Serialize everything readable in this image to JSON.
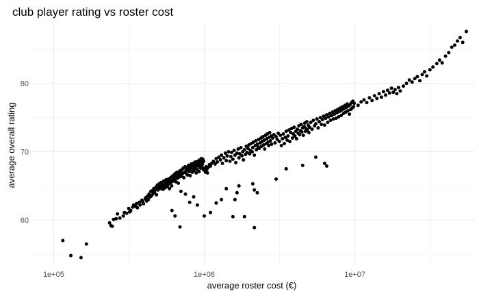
{
  "chart_data": {
    "type": "scatter",
    "title": "club player rating vs roster cost",
    "xlabel": "average roster cost (€)",
    "ylabel": "average overall rating",
    "x_scale": "log10",
    "xlim": [
      72000,
      62000000
    ],
    "ylim": [
      53.3,
      89.0
    ],
    "x_ticks": [
      {
        "value": 100000,
        "label": "1e+05"
      },
      {
        "value": 1000000,
        "label": "1e+06"
      },
      {
        "value": 10000000,
        "label": "1e+07"
      }
    ],
    "y_ticks": [
      {
        "value": 60,
        "label": "60"
      },
      {
        "value": 70,
        "label": "70"
      },
      {
        "value": 80,
        "label": "80"
      }
    ],
    "grid": true,
    "point_color": "#000000",
    "points": [
      [
        115000,
        57.0
      ],
      [
        130000,
        54.8
      ],
      [
        152000,
        54.5
      ],
      [
        165000,
        56.5
      ],
      [
        235000,
        59.6
      ],
      [
        240000,
        59.2
      ],
      [
        245000,
        59.1
      ],
      [
        250000,
        60.1
      ],
      [
        260000,
        60.2
      ],
      [
        265000,
        60.9
      ],
      [
        275000,
        60.3
      ],
      [
        290000,
        60.6
      ],
      [
        295000,
        61.1
      ],
      [
        305000,
        61.0
      ],
      [
        315000,
        61.7
      ],
      [
        320000,
        61.2
      ],
      [
        325000,
        61.4
      ],
      [
        335000,
        61.9
      ],
      [
        340000,
        62.2
      ],
      [
        350000,
        62.0
      ],
      [
        355000,
        62.4
      ],
      [
        360000,
        61.8
      ],
      [
        370000,
        62.6
      ],
      [
        375000,
        62.2
      ],
      [
        385000,
        62.9
      ],
      [
        390000,
        62.7
      ],
      [
        395000,
        62.4
      ],
      [
        405000,
        63.1
      ],
      [
        410000,
        63.3
      ],
      [
        415000,
        62.8
      ],
      [
        420000,
        63.5
      ],
      [
        425000,
        63.0
      ],
      [
        430000,
        63.8
      ],
      [
        438000,
        63.4
      ],
      [
        442000,
        64.2
      ],
      [
        448000,
        63.6
      ],
      [
        452000,
        64.3
      ],
      [
        458000,
        63.9
      ],
      [
        462000,
        64.6
      ],
      [
        468000,
        64.1
      ],
      [
        472000,
        64.5
      ],
      [
        478000,
        64.8
      ],
      [
        482000,
        63.7
      ],
      [
        488000,
        65.1
      ],
      [
        492000,
        64.4
      ],
      [
        498000,
        64.9
      ],
      [
        502000,
        65.3
      ],
      [
        508000,
        64.6
      ],
      [
        512000,
        65.0
      ],
      [
        518000,
        65.5
      ],
      [
        522000,
        64.8
      ],
      [
        528000,
        65.2
      ],
      [
        532000,
        64.5
      ],
      [
        538000,
        65.7
      ],
      [
        542000,
        65.0
      ],
      [
        548000,
        64.7
      ],
      [
        552000,
        65.4
      ],
      [
        558000,
        65.9
      ],
      [
        562000,
        65.1
      ],
      [
        568000,
        64.9
      ],
      [
        572000,
        65.6
      ],
      [
        578000,
        66.0
      ],
      [
        582000,
        65.3
      ],
      [
        588000,
        64.6
      ],
      [
        592000,
        65.8
      ],
      [
        598000,
        66.2
      ],
      [
        602000,
        65.5
      ],
      [
        608000,
        65.0
      ],
      [
        612000,
        66.4
      ],
      [
        618000,
        65.7
      ],
      [
        622000,
        66.0
      ],
      [
        628000,
        66.6
      ],
      [
        632000,
        65.9
      ],
      [
        638000,
        66.3
      ],
      [
        642000,
        66.8
      ],
      [
        648000,
        65.6
      ],
      [
        652000,
        66.5
      ],
      [
        658000,
        67.0
      ],
      [
        662000,
        66.1
      ],
      [
        668000,
        66.7
      ],
      [
        672000,
        65.4
      ],
      [
        678000,
        66.9
      ],
      [
        682000,
        66.3
      ],
      [
        688000,
        67.2
      ],
      [
        692000,
        66.6
      ],
      [
        698000,
        67.1
      ],
      [
        705000,
        66.4
      ],
      [
        712000,
        67.4
      ],
      [
        718000,
        66.8
      ],
      [
        725000,
        67.6
      ],
      [
        732000,
        66.2
      ],
      [
        738000,
        67.0
      ],
      [
        745000,
        67.8
      ],
      [
        752000,
        66.9
      ],
      [
        758000,
        67.3
      ],
      [
        765000,
        67.7
      ],
      [
        772000,
        66.6
      ],
      [
        778000,
        67.5
      ],
      [
        785000,
        68.0
      ],
      [
        792000,
        67.1
      ],
      [
        798000,
        67.8
      ],
      [
        805000,
        66.5
      ],
      [
        812000,
        67.4
      ],
      [
        818000,
        68.2
      ],
      [
        825000,
        67.6
      ],
      [
        832000,
        67.0
      ],
      [
        838000,
        67.9
      ],
      [
        845000,
        68.3
      ],
      [
        852000,
        67.2
      ],
      [
        858000,
        68.0
      ],
      [
        865000,
        67.5
      ],
      [
        872000,
        68.5
      ],
      [
        878000,
        67.8
      ],
      [
        885000,
        66.9
      ],
      [
        892000,
        68.2
      ],
      [
        898000,
        67.4
      ],
      [
        905000,
        68.6
      ],
      [
        912000,
        67.9
      ],
      [
        918000,
        68.3
      ],
      [
        925000,
        67.1
      ],
      [
        932000,
        68.8
      ],
      [
        938000,
        68.0
      ],
      [
        945000,
        67.6
      ],
      [
        952000,
        68.5
      ],
      [
        958000,
        69.0
      ],
      [
        965000,
        67.8
      ],
      [
        972000,
        68.2
      ],
      [
        978000,
        68.9
      ],
      [
        985000,
        67.4
      ],
      [
        992000,
        68.6
      ],
      [
        1000000,
        67.3
      ],
      [
        1010000,
        67.6
      ],
      [
        1020000,
        67.0
      ],
      [
        1030000,
        67.8
      ],
      [
        1040000,
        67.4
      ],
      [
        1050000,
        66.9
      ],
      [
        1060000,
        67.7
      ],
      [
        1080000,
        68.1
      ],
      [
        1100000,
        67.9
      ],
      [
        1120000,
        68.3
      ],
      [
        1150000,
        68.6
      ],
      [
        1180000,
        68.2
      ],
      [
        1200000,
        69.0
      ],
      [
        1220000,
        68.5
      ],
      [
        1250000,
        69.2
      ],
      [
        1280000,
        68.8
      ],
      [
        1300000,
        69.5
      ],
      [
        1320000,
        68.3
      ],
      [
        1350000,
        69.1
      ],
      [
        1380000,
        69.8
      ],
      [
        1400000,
        68.7
      ],
      [
        1420000,
        69.4
      ],
      [
        1450000,
        70.0
      ],
      [
        1480000,
        68.6
      ],
      [
        1500000,
        69.3
      ],
      [
        1520000,
        69.9
      ],
      [
        1550000,
        68.9
      ],
      [
        1580000,
        70.2
      ],
      [
        1600000,
        69.5
      ],
      [
        1620000,
        68.4
      ],
      [
        1650000,
        69.8
      ],
      [
        1680000,
        70.4
      ],
      [
        1700000,
        69.1
      ],
      [
        1720000,
        69.7
      ],
      [
        1750000,
        70.6
      ],
      [
        1780000,
        69.4
      ],
      [
        1800000,
        70.0
      ],
      [
        1820000,
        68.8
      ],
      [
        1850000,
        70.3
      ],
      [
        1880000,
        69.6
      ],
      [
        1900000,
        70.8
      ],
      [
        1920000,
        69.9
      ],
      [
        1950000,
        70.5
      ],
      [
        1980000,
        71.0
      ],
      [
        2000000,
        69.7
      ],
      [
        2020000,
        70.2
      ],
      [
        2050000,
        71.2
      ],
      [
        2080000,
        70.0
      ],
      [
        2100000,
        70.6
      ],
      [
        2120000,
        71.4
      ],
      [
        2150000,
        69.5
      ],
      [
        2180000,
        70.9
      ],
      [
        2200000,
        71.6
      ],
      [
        2220000,
        70.3
      ],
      [
        2250000,
        71.1
      ],
      [
        2280000,
        70.7
      ],
      [
        2300000,
        71.8
      ],
      [
        2320000,
        70.5
      ],
      [
        2350000,
        71.3
      ],
      [
        2380000,
        72.0
      ],
      [
        2400000,
        70.8
      ],
      [
        2420000,
        71.5
      ],
      [
        2450000,
        72.2
      ],
      [
        2480000,
        71.0
      ],
      [
        2500000,
        71.7
      ],
      [
        2520000,
        70.4
      ],
      [
        2550000,
        72.4
      ],
      [
        2580000,
        71.2
      ],
      [
        2600000,
        71.9
      ],
      [
        2620000,
        72.6
      ],
      [
        2650000,
        71.4
      ],
      [
        2680000,
        70.9
      ],
      [
        2700000,
        72.1
      ],
      [
        2720000,
        72.8
      ],
      [
        2750000,
        71.6
      ],
      [
        2780000,
        72.3
      ],
      [
        2800000,
        71.1
      ],
      [
        2850000,
        72.0
      ],
      [
        2900000,
        72.5
      ],
      [
        2950000,
        71.3
      ],
      [
        3000000,
        72.2
      ],
      [
        3050000,
        71.8
      ],
      [
        3100000,
        72.7
      ],
      [
        3150000,
        71.5
      ],
      [
        3200000,
        72.4
      ],
      [
        3250000,
        70.9
      ],
      [
        3300000,
        71.9
      ],
      [
        3350000,
        72.6
      ],
      [
        3400000,
        71.2
      ],
      [
        3450000,
        72.1
      ],
      [
        3500000,
        73.0
      ],
      [
        3550000,
        71.7
      ],
      [
        3600000,
        72.3
      ],
      [
        3650000,
        73.2
      ],
      [
        3700000,
        71.5
      ],
      [
        3750000,
        72.8
      ],
      [
        3800000,
        73.4
      ],
      [
        3850000,
        72.0
      ],
      [
        3900000,
        72.6
      ],
      [
        3950000,
        73.6
      ],
      [
        4000000,
        72.3
      ],
      [
        4050000,
        73.0
      ],
      [
        4100000,
        71.9
      ],
      [
        4150000,
        73.3
      ],
      [
        4200000,
        72.7
      ],
      [
        4250000,
        73.8
      ],
      [
        4300000,
        72.5
      ],
      [
        4350000,
        73.1
      ],
      [
        4400000,
        74.0
      ],
      [
        4450000,
        72.9
      ],
      [
        4500000,
        73.5
      ],
      [
        4550000,
        72.4
      ],
      [
        4600000,
        73.7
      ],
      [
        4650000,
        74.2
      ],
      [
        4700000,
        73.0
      ],
      [
        4750000,
        73.4
      ],
      [
        4800000,
        74.4
      ],
      [
        4850000,
        73.2
      ],
      [
        4900000,
        73.9
      ],
      [
        4950000,
        72.8
      ],
      [
        5000000,
        73.6
      ],
      [
        5100000,
        74.3
      ],
      [
        5200000,
        73.3
      ],
      [
        5300000,
        74.6
      ],
      [
        5400000,
        73.8
      ],
      [
        5500000,
        74.1
      ],
      [
        5600000,
        74.8
      ],
      [
        5700000,
        73.5
      ],
      [
        5800000,
        74.4
      ],
      [
        5900000,
        75.0
      ],
      [
        6000000,
        74.0
      ],
      [
        6100000,
        74.7
      ],
      [
        6200000,
        75.2
      ],
      [
        6300000,
        73.9
      ],
      [
        6400000,
        74.9
      ],
      [
        6500000,
        75.4
      ],
      [
        6600000,
        74.3
      ],
      [
        6700000,
        75.1
      ],
      [
        6800000,
        75.6
      ],
      [
        6900000,
        74.6
      ],
      [
        7000000,
        75.3
      ],
      [
        7100000,
        75.8
      ],
      [
        7200000,
        74.8
      ],
      [
        7300000,
        75.5
      ],
      [
        7400000,
        76.0
      ],
      [
        7500000,
        74.9
      ],
      [
        7600000,
        75.7
      ],
      [
        7700000,
        76.2
      ],
      [
        7800000,
        75.1
      ],
      [
        7900000,
        75.9
      ],
      [
        8000000,
        76.4
      ],
      [
        8100000,
        75.3
      ],
      [
        8200000,
        76.1
      ],
      [
        8300000,
        76.6
      ],
      [
        8400000,
        75.6
      ],
      [
        8500000,
        76.3
      ],
      [
        8600000,
        76.8
      ],
      [
        8700000,
        75.8
      ],
      [
        8800000,
        76.5
      ],
      [
        8900000,
        77.0
      ],
      [
        9000000,
        76.0
      ],
      [
        9100000,
        76.7
      ],
      [
        9200000,
        75.5
      ],
      [
        9300000,
        76.9
      ],
      [
        9400000,
        76.2
      ],
      [
        9500000,
        77.2
      ],
      [
        9600000,
        76.4
      ],
      [
        9700000,
        77.4
      ],
      [
        9800000,
        76.6
      ],
      [
        9900000,
        77.1
      ],
      [
        10500000,
        76.8
      ],
      [
        11000000,
        77.3
      ],
      [
        11500000,
        77.6
      ],
      [
        12000000,
        77.2
      ],
      [
        12500000,
        77.9
      ],
      [
        13000000,
        77.5
      ],
      [
        13500000,
        78.2
      ],
      [
        14000000,
        77.8
      ],
      [
        14500000,
        78.5
      ],
      [
        15000000,
        78.0
      ],
      [
        15500000,
        78.8
      ],
      [
        16000000,
        78.3
      ],
      [
        16500000,
        79.0
      ],
      [
        17000000,
        78.6
      ],
      [
        17500000,
        79.3
      ],
      [
        18000000,
        78.7
      ],
      [
        18500000,
        79.1
      ],
      [
        19000000,
        78.5
      ],
      [
        19500000,
        79.4
      ],
      [
        20000000,
        78.9
      ],
      [
        21000000,
        79.6
      ],
      [
        22000000,
        80.0
      ],
      [
        23000000,
        80.5
      ],
      [
        24000000,
        80.2
      ],
      [
        25000000,
        80.7
      ],
      [
        26000000,
        81.0
      ],
      [
        27000000,
        80.4
      ],
      [
        28000000,
        81.3
      ],
      [
        29000000,
        81.7
      ],
      [
        30000000,
        81.1
      ],
      [
        31500000,
        82.0
      ],
      [
        33000000,
        82.4
      ],
      [
        35000000,
        82.9
      ],
      [
        36500000,
        83.4
      ],
      [
        38000000,
        83.0
      ],
      [
        40000000,
        84.0
      ],
      [
        42000000,
        84.5
      ],
      [
        44000000,
        85.3
      ],
      [
        46000000,
        85.6
      ],
      [
        48000000,
        86.2
      ],
      [
        50000000,
        86.7
      ],
      [
        52000000,
        86.0
      ],
      [
        55000000,
        87.6
      ],
      [
        690000,
        59.0
      ],
      [
        610000,
        61.4
      ],
      [
        640000,
        60.6
      ],
      [
        1550000,
        60.5
      ],
      [
        1600000,
        63.0
      ],
      [
        1650000,
        64.0
      ],
      [
        1700000,
        65.0
      ],
      [
        1850000,
        60.5
      ],
      [
        2100000,
        65.3
      ],
      [
        2150000,
        64.4
      ],
      [
        2250000,
        64.0
      ],
      [
        2150000,
        58.9
      ],
      [
        3000000,
        66.0
      ],
      [
        3500000,
        67.5
      ],
      [
        4500000,
        68.0
      ],
      [
        5500000,
        69.2
      ],
      [
        6300000,
        68.3
      ],
      [
        6500000,
        67.9
      ],
      [
        1000000,
        60.6
      ],
      [
        1100000,
        61.1
      ],
      [
        1200000,
        62.5
      ],
      [
        1300000,
        63.0
      ],
      [
        900000,
        62.2
      ],
      [
        800000,
        62.6
      ],
      [
        750000,
        63.8
      ],
      [
        850000,
        63.4
      ],
      [
        700000,
        64.2
      ],
      [
        1400000,
        64.6
      ]
    ]
  }
}
